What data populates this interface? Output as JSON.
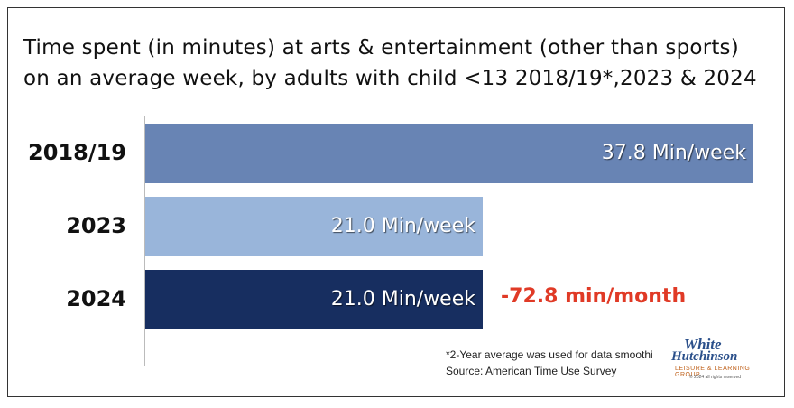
{
  "chart_data": {
    "type": "bar",
    "orientation": "horizontal",
    "title": "Time spent (in minutes) at arts & entertainment (other than sports) on an average week, by adults with child <13 2018/19*,2023 & 2024",
    "title_lines": [
      "Time spent (in minutes) at arts & entertainment (other than sports)",
      "on an average week, by adults with child <13 2018/19*,2023 & 2024"
    ],
    "categories": [
      "2018/19",
      "2023",
      "2024"
    ],
    "values": [
      37.8,
      21.0,
      21.0
    ],
    "data_labels": [
      "37.8 Min/week",
      "21.0 Min/week",
      "21.0 Min/week"
    ],
    "bar_colors": [
      "#6884b4",
      "#99b5da",
      "#172e60"
    ],
    "xlim": [
      0,
      37.8
    ],
    "grid": false,
    "annotations": [
      {
        "text": "-72.8 min/month",
        "color": "#e03a26",
        "category": "2024"
      }
    ]
  },
  "footnotes": {
    "note": "*2-Year average was used for data smoothi",
    "source": "Source: American Time Use Survey"
  },
  "logo": {
    "line1": "White",
    "line2": "Hutchinson",
    "tagline": "LEISURE & LEARNING GROUP",
    "copyright": "© 2024 all rights reserved"
  }
}
